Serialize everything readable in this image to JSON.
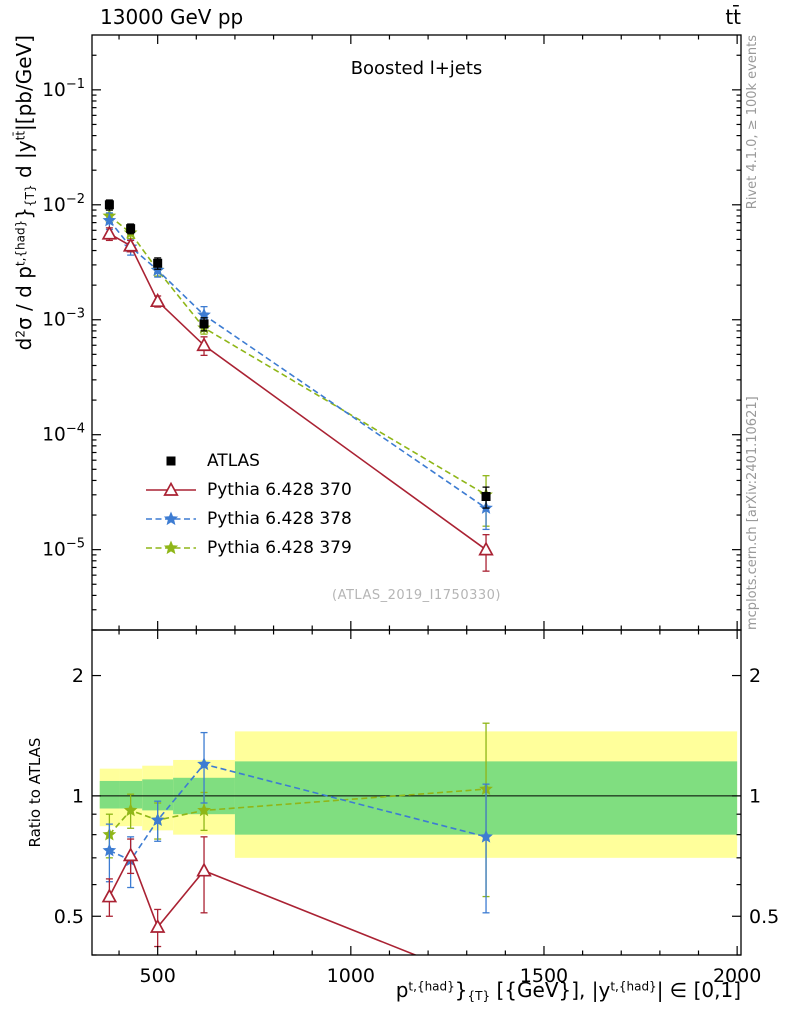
{
  "header": {
    "left_title": "13000 GeV pp",
    "right_title": "tt̄"
  },
  "panel_title": "Boosted l+jets",
  "watermark": "(ATLAS_2019_I1750330)",
  "side_captions": {
    "top": "Rivet 4.1.0, ≥ 100k events",
    "bottom": "mcplots.cern.ch [arXiv:2401.10621]"
  },
  "labels": {
    "ylabel_ratio": "Ratio to ATLAS",
    "ylabel_main": {
      "p1": "d",
      "p1sup": "2",
      "p2": "σ / d p",
      "p2sup": "t,{had}",
      "p2brace": "}",
      "p2sub": "{T}",
      "p3": " d |y",
      "p3sup": "tt̄",
      "p4": "|[pb/GeV]"
    },
    "xlabel": {
      "p1": "p",
      "p1sup": "t,{had}",
      "p1brace": "}",
      "p1sub": "{T}",
      "p2": " [{GeV}], |y",
      "p2sup": "t,{had}",
      "p3": "| ∈ [0,1]"
    }
  },
  "chart_data": {
    "type": "scatter",
    "title": "Boosted l+jets",
    "x_scale": "linear",
    "x_range": [
      330,
      2010
    ],
    "x_ticks": [
      500,
      1000,
      1500,
      2000
    ],
    "x_minor_step": 100,
    "bins": {
      "edges": [
        350,
        400,
        460,
        540,
        700,
        2000
      ],
      "centers": [
        375,
        430,
        500,
        620,
        1350
      ]
    },
    "main_panel": {
      "y_scale": "log",
      "y_range": [
        2e-06,
        0.3
      ],
      "y_tick_exponents": [
        -1,
        -2,
        -3,
        -4,
        -5
      ],
      "ylabel": "d2σ / d pT(t,had) d |y(tt)| [pb/GeV]"
    },
    "ratio_panel": {
      "y_scale": "log",
      "y_range": [
        0.4,
        2.6
      ],
      "y_ticks": [
        0.5,
        1,
        2
      ],
      "y_minor_ticks": [
        0.4,
        0.6,
        0.7,
        0.8,
        0.9
      ],
      "reference": 1,
      "ylabel": "Ratio to ATLAS"
    },
    "bands": {
      "yellow_color": "#ffff9b",
      "green_color": "#80de80",
      "bins": [
        {
          "x0": 350,
          "x1": 400,
          "yellow": [
            0.84,
            1.17
          ],
          "green": [
            0.93,
            1.09
          ]
        },
        {
          "x0": 400,
          "x1": 460,
          "yellow": [
            0.84,
            1.17
          ],
          "green": [
            0.93,
            1.09
          ]
        },
        {
          "x0": 460,
          "x1": 540,
          "yellow": [
            0.82,
            1.19
          ],
          "green": [
            0.92,
            1.1
          ]
        },
        {
          "x0": 540,
          "x1": 700,
          "yellow": [
            0.8,
            1.23
          ],
          "green": [
            0.9,
            1.11
          ]
        },
        {
          "x0": 700,
          "x1": 2000,
          "yellow": [
            0.7,
            1.45
          ],
          "green": [
            0.8,
            1.22
          ]
        }
      ]
    },
    "series": [
      {
        "name": "ATLAS",
        "color": "#000000",
        "marker": "square",
        "line": null,
        "values": [
          0.01,
          0.0062,
          0.0031,
          0.00092,
          2.9e-05
        ],
        "yerr": [
          0.001,
          0.0006,
          0.00035,
          0.00012,
          6e-06
        ]
      },
      {
        "name": "Pythia 6.428 370",
        "color": "#aa2233",
        "marker": "triangle",
        "line": "solid",
        "values": [
          0.0056,
          0.0044,
          0.00145,
          0.0006,
          1e-05
        ],
        "yerr": [
          0.0007,
          0.0005,
          0.00016,
          0.00011,
          3.5e-06
        ],
        "ratio": [
          0.56,
          0.71,
          0.47,
          0.65,
          0.34
        ],
        "ratio_err": [
          0.06,
          0.07,
          0.05,
          0.14,
          0.05
        ]
      },
      {
        "name": "Pythia 6.428 378",
        "color": "#3d7cd2",
        "marker": "star",
        "line": "dashed",
        "values": [
          0.0073,
          0.0043,
          0.0027,
          0.0011,
          2.3e-05
        ],
        "yerr": [
          0.0012,
          0.00065,
          0.00035,
          0.0002,
          8e-06
        ],
        "ratio": [
          0.73,
          0.69,
          0.87,
          1.2,
          0.79
        ],
        "ratio_err": [
          0.12,
          0.1,
          0.1,
          0.24,
          0.28
        ]
      },
      {
        "name": "Pythia 6.428 379",
        "color": "#8fb618",
        "marker": "star",
        "line": "dashed",
        "values": [
          0.008,
          0.0057,
          0.0027,
          0.00085,
          3e-05
        ],
        "yerr": [
          0.001,
          0.0006,
          0.0003,
          0.0001,
          1.4e-05
        ],
        "ratio": [
          0.8,
          0.92,
          0.87,
          0.92,
          1.04
        ],
        "ratio_err": [
          0.1,
          0.09,
          0.09,
          0.1,
          0.48
        ]
      }
    ]
  }
}
